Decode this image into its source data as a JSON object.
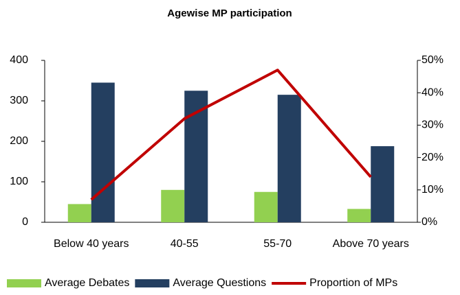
{
  "chart_data": {
    "type": "bar_line",
    "title": "Agewise MP participation",
    "categories": [
      "Below 40 years",
      "40-55",
      "55-70",
      "Above 70 years"
    ],
    "series": [
      {
        "name": "Average Debates",
        "color": "#92d050",
        "type": "bar",
        "values": [
          45,
          80,
          75,
          33
        ]
      },
      {
        "name": "Average Questions",
        "color": "#243f60",
        "type": "bar",
        "values": [
          345,
          325,
          315,
          188
        ]
      },
      {
        "name": "Proportion of MPs",
        "color": "#c00000",
        "type": "line",
        "axis": "y2",
        "values": [
          7,
          32,
          47,
          14
        ]
      }
    ],
    "ylim": [
      0,
      400
    ],
    "yticks": [
      0,
      100,
      200,
      300,
      400
    ],
    "y2lim": [
      0,
      50
    ],
    "y2ticks": [
      {
        "value": 0,
        "label": "0%"
      },
      {
        "value": 10,
        "label": "10%"
      },
      {
        "value": 20,
        "label": "20%"
      },
      {
        "value": 30,
        "label": "30%"
      },
      {
        "value": 40,
        "label": "40%"
      },
      {
        "value": 50,
        "label": "50%"
      }
    ],
    "legend": "bottom"
  }
}
